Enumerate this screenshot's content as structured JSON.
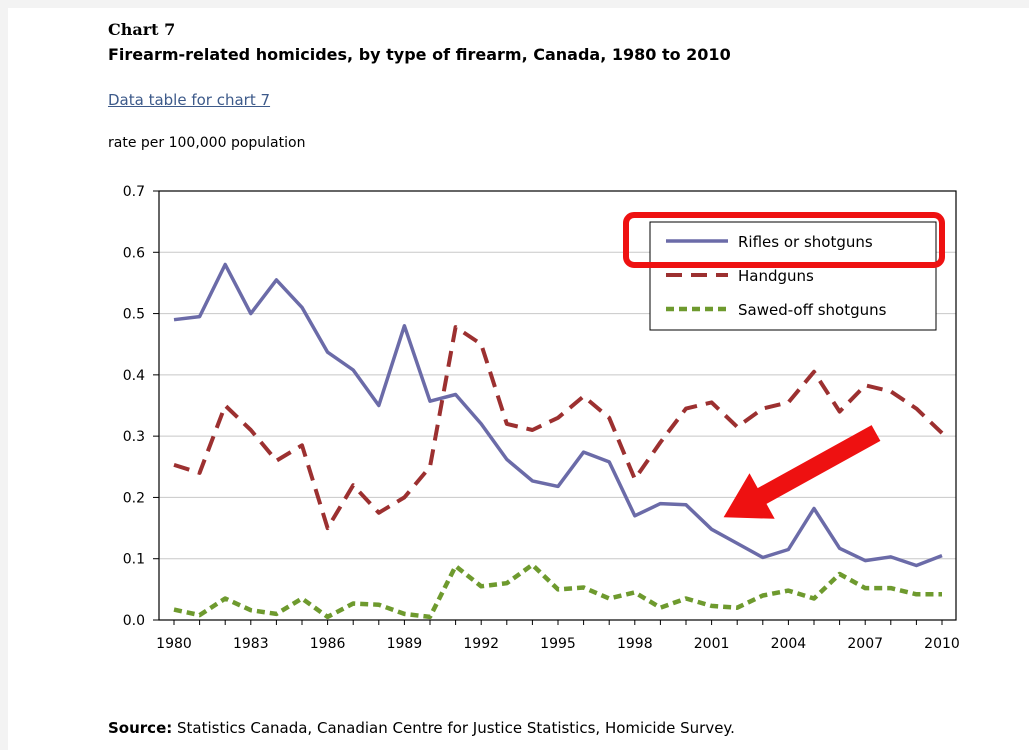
{
  "header": {
    "chart_number": "Chart 7",
    "title": "Firearm-related homicides, by type of firearm, Canada, 1980 to 2010",
    "data_table_link": "Data table for chart 7",
    "y_axis_title": "rate per 100,000 population"
  },
  "footer": {
    "source_label": "Source:",
    "source_text": " Statistics Canada, Canadian Centre for Justice Statistics, Homicide Survey."
  },
  "colors": {
    "rifles": "#6b6ba8",
    "handguns": "#9c3030",
    "sawed_off": "#6e9a2e",
    "annotation": "#ee1111",
    "grid": "#c8c8c8"
  },
  "annotations": {
    "legend_highlight": "Rifles or shotguns",
    "arrow_points_to_year": 2001
  },
  "chart_data": {
    "type": "line",
    "xlabel": "",
    "ylabel": "rate per 100,000 population",
    "ylim": [
      0,
      0.7
    ],
    "y_ticks": [
      "0.0",
      "0.1",
      "0.2",
      "0.3",
      "0.4",
      "0.5",
      "0.6",
      "0.7"
    ],
    "x_ticks": [
      "1980",
      "1983",
      "1986",
      "1989",
      "1992",
      "1995",
      "1998",
      "2001",
      "2004",
      "2007",
      "2010"
    ],
    "grid": "horizontal",
    "legend_position": "top-right",
    "x": [
      1980,
      1981,
      1982,
      1983,
      1984,
      1985,
      1986,
      1987,
      1988,
      1989,
      1990,
      1991,
      1992,
      1993,
      1994,
      1995,
      1996,
      1997,
      1998,
      1999,
      2000,
      2001,
      2002,
      2003,
      2004,
      2005,
      2006,
      2007,
      2008,
      2009,
      2010
    ],
    "series": [
      {
        "name": "Rifles or shotguns",
        "style": "solid",
        "values": [
          0.49,
          0.495,
          0.58,
          0.5,
          0.555,
          0.51,
          0.437,
          0.408,
          0.35,
          0.48,
          0.357,
          0.368,
          0.32,
          0.262,
          0.227,
          0.218,
          0.274,
          0.258,
          0.17,
          0.19,
          0.188,
          0.148,
          0.125,
          0.102,
          0.115,
          0.182,
          0.117,
          0.097,
          0.103,
          0.089,
          0.105
        ]
      },
      {
        "name": "Handguns",
        "style": "dashed",
        "values": [
          0.253,
          0.24,
          0.35,
          0.31,
          0.26,
          0.285,
          0.15,
          0.22,
          0.175,
          0.2,
          0.25,
          0.478,
          0.45,
          0.32,
          0.31,
          0.33,
          0.365,
          0.33,
          0.23,
          0.29,
          0.345,
          0.355,
          0.315,
          0.345,
          0.355,
          0.405,
          0.34,
          0.383,
          0.373,
          0.345,
          0.305
        ]
      },
      {
        "name": "Sawed-off shotguns",
        "style": "dotted",
        "values": [
          0.017,
          0.008,
          0.035,
          0.016,
          0.01,
          0.035,
          0.005,
          0.027,
          0.025,
          0.01,
          0.005,
          0.088,
          0.055,
          0.06,
          0.09,
          0.05,
          0.053,
          0.035,
          0.045,
          0.02,
          0.035,
          0.023,
          0.02,
          0.04,
          0.048,
          0.035,
          0.075,
          0.052,
          0.052,
          0.042,
          0.042
        ]
      }
    ]
  }
}
